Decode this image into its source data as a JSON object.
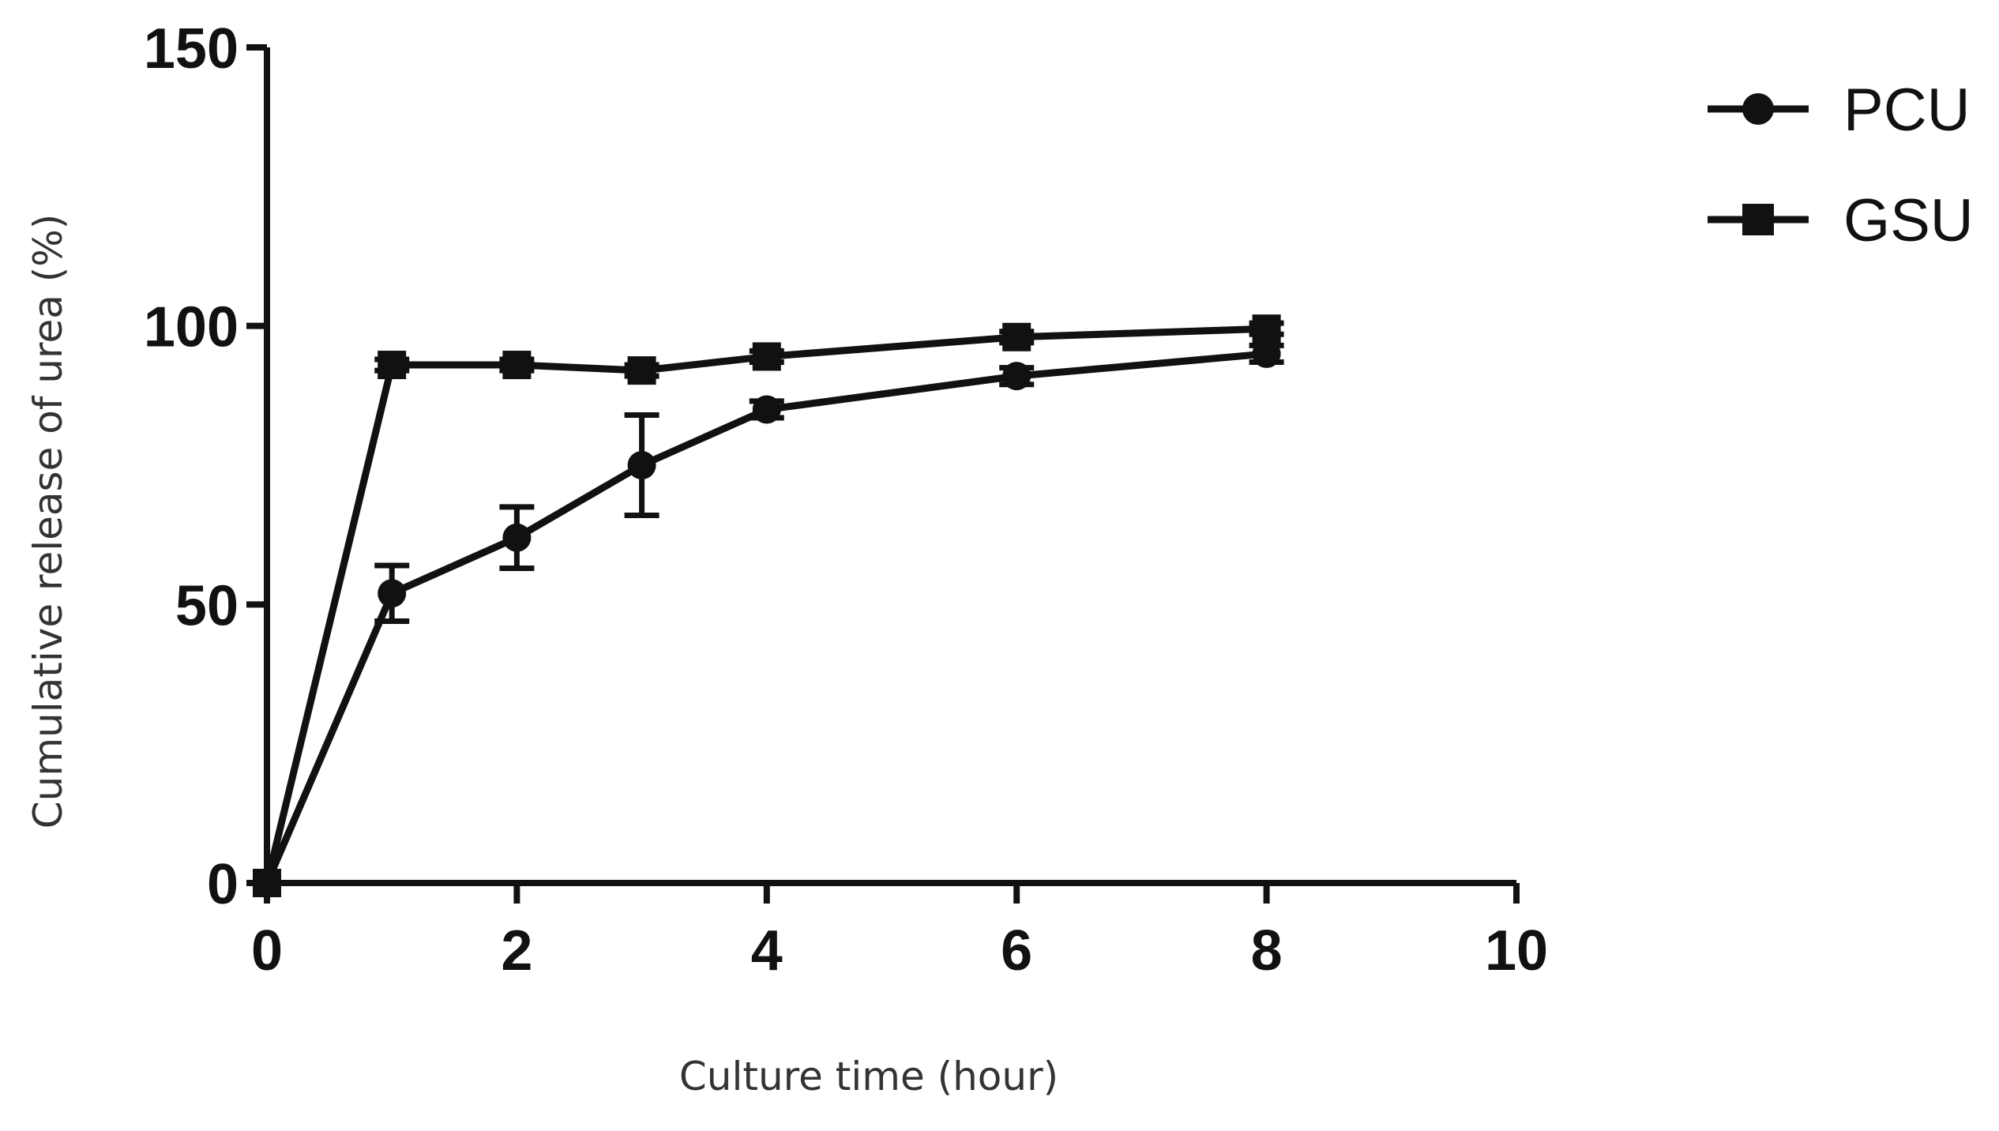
{
  "chart_data": {
    "type": "line",
    "title": "",
    "xlabel": "Culture time (hour)",
    "ylabel": "Cumulative release of urea (%)",
    "xlim": [
      0,
      10
    ],
    "ylim": [
      0,
      150
    ],
    "xticks": [
      "0",
      "2",
      "4",
      "6",
      "8",
      "10"
    ],
    "yticks": [
      "0",
      "50",
      "100",
      "150"
    ],
    "grid": false,
    "legend_position": "top-right",
    "series": [
      {
        "name": "PCU",
        "marker": "circle",
        "color": "#111111",
        "x": [
          0,
          1,
          2,
          3,
          4,
          6,
          8
        ],
        "y": [
          0,
          52,
          62,
          75,
          85,
          91,
          95
        ],
        "error": [
          0,
          5,
          5.5,
          9,
          1.5,
          1.5,
          1.5
        ]
      },
      {
        "name": "GSU",
        "marker": "square",
        "color": "#111111",
        "x": [
          0,
          1,
          2,
          3,
          4,
          6,
          8
        ],
        "y": [
          0,
          93,
          93,
          92,
          94.5,
          98,
          99.5
        ],
        "error": [
          0,
          1,
          1,
          1,
          1,
          1,
          1
        ]
      }
    ]
  }
}
